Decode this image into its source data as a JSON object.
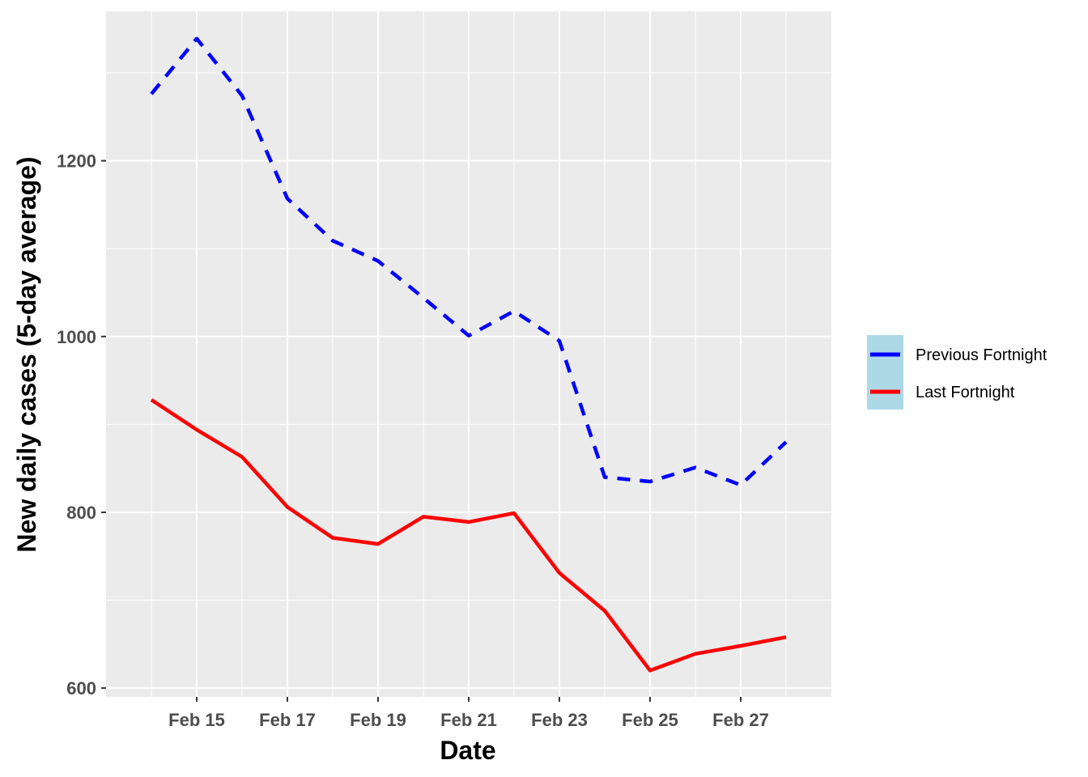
{
  "chart_data": {
    "type": "line",
    "xlabel": "Date",
    "ylabel": "New daily cases (5-day average)",
    "x": [
      "2021-02-14",
      "2021-02-15",
      "2021-02-16",
      "2021-02-17",
      "2021-02-18",
      "2021-02-19",
      "2021-02-20",
      "2021-02-21",
      "2021-02-22",
      "2021-02-23",
      "2021-02-24",
      "2021-02-25",
      "2021-02-26",
      "2021-02-27",
      "2021-02-28"
    ],
    "x_ticks": [
      {
        "date": "2021-02-15",
        "label": "Feb 15"
      },
      {
        "date": "2021-02-17",
        "label": "Feb 17"
      },
      {
        "date": "2021-02-19",
        "label": "Feb 19"
      },
      {
        "date": "2021-02-21",
        "label": "Feb 21"
      },
      {
        "date": "2021-02-23",
        "label": "Feb 23"
      },
      {
        "date": "2021-02-25",
        "label": "Feb 25"
      },
      {
        "date": "2021-02-27",
        "label": "Feb 27"
      }
    ],
    "xlim": [
      "2021-02-13",
      "2021-02-29"
    ],
    "y_ticks": [
      600,
      800,
      1000,
      1200
    ],
    "y_minor_ticks": [
      700,
      900,
      1100,
      1300
    ],
    "ylim": [
      590,
      1370
    ],
    "grid": true,
    "legend_position": "right",
    "series": [
      {
        "name": "Previous Fortnight",
        "color": "#0000ff",
        "line_style": "dashed",
        "values": [
          1276,
          1339,
          1274,
          1157,
          1109,
          1086,
          1044,
          1001,
          1029,
          995,
          840,
          835,
          851,
          831,
          880
        ]
      },
      {
        "name": "Last Fortnight",
        "color": "#ff0000",
        "line_style": "solid",
        "values": [
          928,
          894,
          863,
          806,
          771,
          764,
          795,
          789,
          799,
          731,
          688,
          620,
          639,
          648,
          658
        ]
      }
    ]
  },
  "legend": {
    "background": "#add8e6"
  },
  "colors": {
    "panel_background": "#ebebeb",
    "grid": "#ffffff"
  }
}
